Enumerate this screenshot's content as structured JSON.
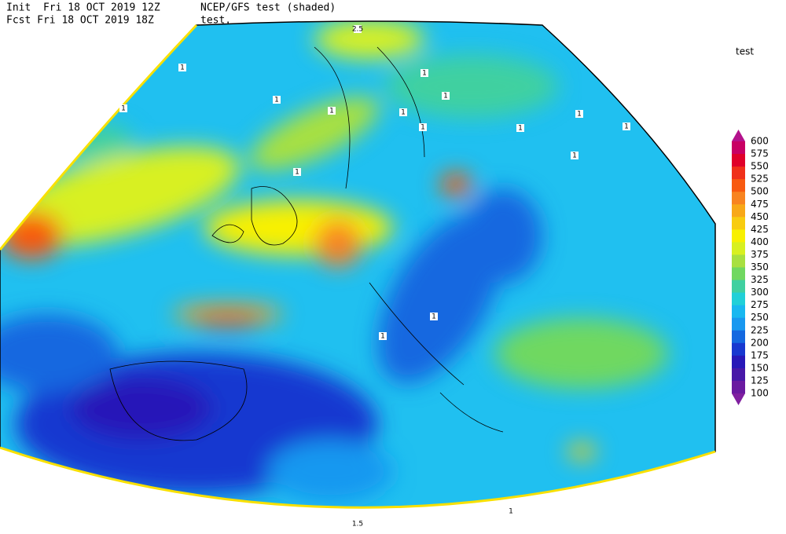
{
  "header": {
    "init": "Init  Fri 18 OCT 2019 12Z",
    "fcst": "Fcst Fri 18 OCT 2019 18Z",
    "title": "NCEP/GFS test (shaded)",
    "subtitle": "test."
  },
  "legend": {
    "title": "test",
    "labels": [
      "600",
      "575",
      "550",
      "525",
      "500",
      "475",
      "450",
      "425",
      "400",
      "375",
      "350",
      "325",
      "300",
      "275",
      "250",
      "225",
      "200",
      "175",
      "150",
      "125",
      "100"
    ],
    "colors": [
      "#b4128c",
      "#c80064",
      "#e0002a",
      "#f0301a",
      "#f85a10",
      "#f88420",
      "#f8a818",
      "#f8cc10",
      "#f8f000",
      "#d8f020",
      "#a8e040",
      "#70d860",
      "#40d0a0",
      "#20d0d8",
      "#18b8f0",
      "#1898f0",
      "#1468e0",
      "#1838d0",
      "#2818b8",
      "#4818a8",
      "#6a1aa0",
      "#8020a0"
    ]
  },
  "contour_labels": [
    "2.5",
    "1",
    "1",
    "1",
    "1",
    "1",
    "1",
    "1",
    "1",
    "1",
    "1",
    "1",
    "1",
    "1",
    "1",
    "1",
    "1.5",
    "1"
  ]
}
